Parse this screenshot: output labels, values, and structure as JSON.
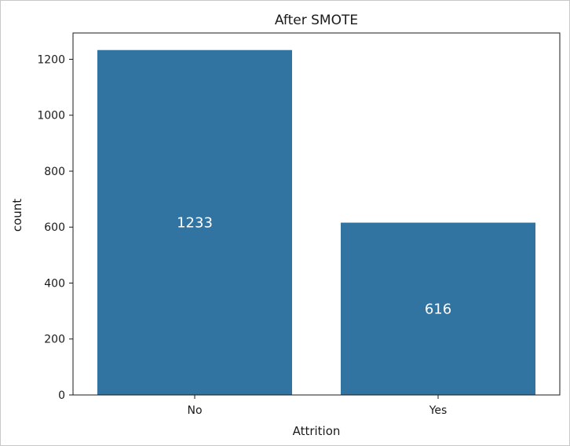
{
  "chart_data": {
    "type": "bar",
    "title": "After SMOTE",
    "xlabel": "Attrition",
    "ylabel": "count",
    "categories": [
      "No",
      "Yes"
    ],
    "values": [
      1233,
      616
    ],
    "data_labels": [
      "1233",
      "616"
    ],
    "y_ticks": [
      0,
      200,
      400,
      600,
      800,
      1000,
      1200
    ],
    "ylim": [
      0,
      1294
    ],
    "bar_color": "#3274a1",
    "label_color": "#ffffff",
    "grid": false,
    "legend": "none"
  }
}
